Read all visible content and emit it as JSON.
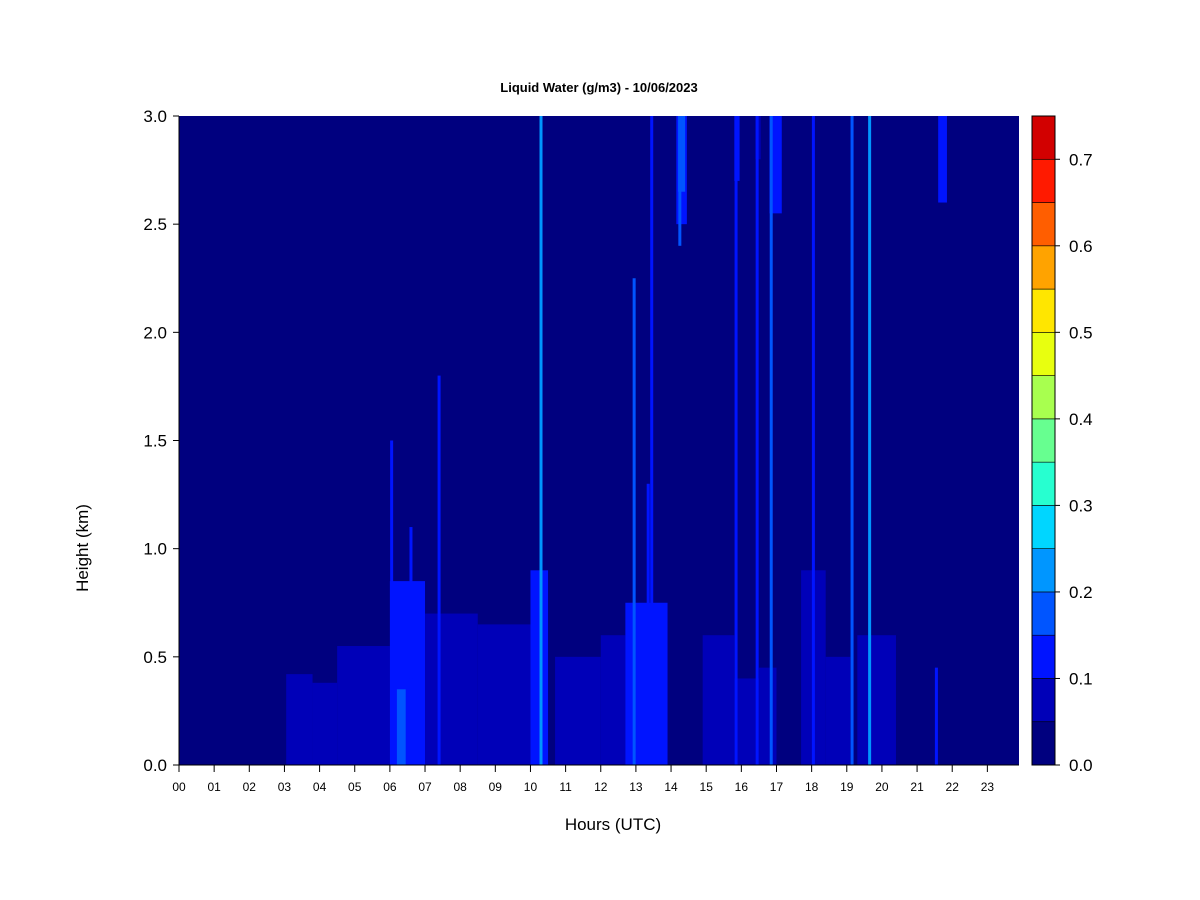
{
  "chart_data": {
    "type": "heatmap",
    "title": "Liquid Water (g/m3) - 10/06/2023",
    "xlabel": "Hours (UTC)",
    "ylabel": "Height (km)",
    "xlim": [
      0,
      23.9
    ],
    "ylim": [
      0.0,
      3.0
    ],
    "x_ticks": [
      "00",
      "01",
      "02",
      "03",
      "04",
      "05",
      "06",
      "07",
      "08",
      "09",
      "10",
      "11",
      "12",
      "13",
      "14",
      "15",
      "16",
      "17",
      "18",
      "19",
      "20",
      "21",
      "22",
      "23"
    ],
    "y_ticks": [
      "0.0",
      "0.5",
      "1.0",
      "1.5",
      "2.0",
      "2.5",
      "3.0"
    ],
    "colorbar": {
      "levels": [
        0.0,
        0.05,
        0.1,
        0.15,
        0.2,
        0.25,
        0.3,
        0.35,
        0.4,
        0.45,
        0.5,
        0.55,
        0.6,
        0.65,
        0.7,
        0.75
      ],
      "colors": [
        "#00007f",
        "#0000b8",
        "#0014ff",
        "#0055ff",
        "#0096ff",
        "#00d6ff",
        "#27ffd0",
        "#67ff90",
        "#a8ff4f",
        "#e8ff0f",
        "#ffe600",
        "#ffa300",
        "#ff5e00",
        "#ff1a00",
        "#d20000",
        "#7f0000"
      ],
      "tick_labels": [
        "0.0",
        "0.1",
        "0.2",
        "0.3",
        "0.4",
        "0.5",
        "0.6",
        "0.7"
      ],
      "tick_values": [
        0.0,
        0.1,
        0.2,
        0.3,
        0.4,
        0.5,
        0.6,
        0.7
      ]
    },
    "regions": [
      {
        "x0": 3.05,
        "x1": 3.8,
        "y0": 0.0,
        "y1": 0.42,
        "v": 0.08
      },
      {
        "x0": 3.8,
        "x1": 4.5,
        "y0": 0.0,
        "y1": 0.38,
        "v": 0.07
      },
      {
        "x0": 4.5,
        "x1": 6.0,
        "y0": 0.0,
        "y1": 0.55,
        "v": 0.09
      },
      {
        "x0": 6.0,
        "x1": 7.0,
        "y0": 0.0,
        "y1": 0.85,
        "v": 0.11
      },
      {
        "x0": 7.0,
        "x1": 8.5,
        "y0": 0.0,
        "y1": 0.7,
        "v": 0.09
      },
      {
        "x0": 8.5,
        "x1": 10.0,
        "y0": 0.0,
        "y1": 0.65,
        "v": 0.08
      },
      {
        "x0": 10.0,
        "x1": 10.5,
        "y0": 0.0,
        "y1": 0.9,
        "v": 0.11
      },
      {
        "x0": 10.7,
        "x1": 12.0,
        "y0": 0.0,
        "y1": 0.5,
        "v": 0.09
      },
      {
        "x0": 12.0,
        "x1": 12.7,
        "y0": 0.0,
        "y1": 0.6,
        "v": 0.08
      },
      {
        "x0": 12.7,
        "x1": 13.9,
        "y0": 0.0,
        "y1": 0.75,
        "v": 0.1
      },
      {
        "x0": 14.9,
        "x1": 15.8,
        "y0": 0.0,
        "y1": 0.6,
        "v": 0.08
      },
      {
        "x0": 15.8,
        "x1": 16.5,
        "y0": 0.0,
        "y1": 0.4,
        "v": 0.07
      },
      {
        "x0": 16.5,
        "x1": 17.0,
        "y0": 0.0,
        "y1": 0.45,
        "v": 0.07
      },
      {
        "x0": 17.7,
        "x1": 18.4,
        "y0": 0.0,
        "y1": 0.9,
        "v": 0.09
      },
      {
        "x0": 18.4,
        "x1": 19.1,
        "y0": 0.0,
        "y1": 0.5,
        "v": 0.08
      },
      {
        "x0": 19.3,
        "x1": 20.4,
        "y0": 0.0,
        "y1": 0.6,
        "v": 0.08
      },
      {
        "x0": 14.15,
        "x1": 14.45,
        "y0": 2.5,
        "y1": 3.0,
        "v": 0.12
      },
      {
        "x0": 14.2,
        "x1": 14.4,
        "y0": 2.65,
        "y1": 3.0,
        "v": 0.17
      },
      {
        "x0": 16.8,
        "x1": 17.15,
        "y0": 2.55,
        "y1": 3.0,
        "v": 0.1
      },
      {
        "x0": 21.6,
        "x1": 21.85,
        "y0": 2.6,
        "y1": 3.0,
        "v": 0.11
      },
      {
        "x0": 6.2,
        "x1": 6.45,
        "y0": 0.0,
        "y1": 0.35,
        "v": 0.17
      },
      {
        "x0": 6.5,
        "x1": 6.75,
        "y0": 0.0,
        "y1": 0.4,
        "v": 0.14
      },
      {
        "x0": 15.8,
        "x1": 15.95,
        "y0": 2.7,
        "y1": 3.0,
        "v": 0.1
      },
      {
        "x0": 16.4,
        "x1": 16.55,
        "y0": 2.8,
        "y1": 3.0,
        "v": 0.09
      }
    ],
    "streaks": [
      {
        "x": 10.3,
        "y0": 0.0,
        "y1": 3.0,
        "v": 0.23
      },
      {
        "x": 13.45,
        "y0": 0.0,
        "y1": 3.0,
        "v": 0.14
      },
      {
        "x": 15.85,
        "y0": 0.0,
        "y1": 3.0,
        "v": 0.13
      },
      {
        "x": 16.45,
        "y0": 0.0,
        "y1": 3.0,
        "v": 0.13
      },
      {
        "x": 16.85,
        "y0": 0.0,
        "y1": 3.0,
        "v": 0.19
      },
      {
        "x": 18.05,
        "y0": 0.0,
        "y1": 3.0,
        "v": 0.12
      },
      {
        "x": 19.15,
        "y0": 0.0,
        "y1": 3.0,
        "v": 0.18
      },
      {
        "x": 19.65,
        "y0": 0.0,
        "y1": 3.0,
        "v": 0.2
      },
      {
        "x": 7.4,
        "y0": 0.0,
        "y1": 1.8,
        "v": 0.14
      },
      {
        "x": 12.95,
        "y0": 0.0,
        "y1": 2.25,
        "v": 0.15
      },
      {
        "x": 13.35,
        "y0": 0.0,
        "y1": 1.3,
        "v": 0.12
      },
      {
        "x": 6.05,
        "y0": 0.0,
        "y1": 1.5,
        "v": 0.11
      },
      {
        "x": 6.6,
        "y0": 0.0,
        "y1": 1.1,
        "v": 0.13
      },
      {
        "x": 10.2,
        "y0": 0.0,
        "y1": 0.8,
        "v": 0.12
      },
      {
        "x": 14.25,
        "y0": 2.4,
        "y1": 3.0,
        "v": 0.15
      },
      {
        "x": 21.55,
        "y0": 0.0,
        "y1": 0.45,
        "v": 0.1
      }
    ]
  }
}
